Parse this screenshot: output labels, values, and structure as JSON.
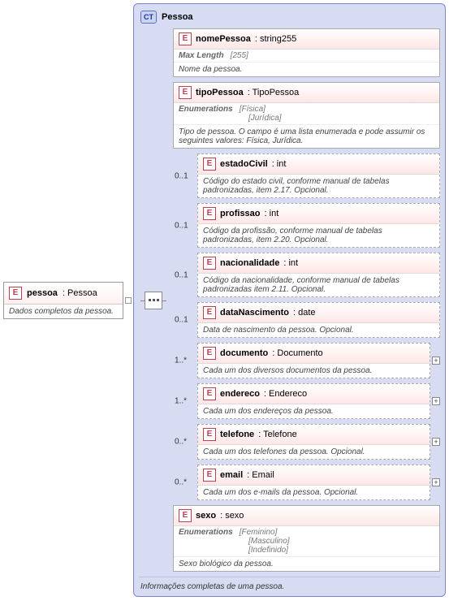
{
  "root": {
    "icon": "E",
    "name": "pessoa",
    "type": ": Pessoa",
    "desc": "Dados completos da pessoa."
  },
  "ct": {
    "icon": "CT",
    "title": "Pessoa",
    "footer": "Informações completas de uma pessoa."
  },
  "children": [
    {
      "icon": "E",
      "name": "nomePessoa",
      "type": ": string255",
      "cardinality": "",
      "style": "required",
      "metaKey": "Max Length",
      "metaVal": "[255]",
      "desc": "Nome da pessoa.",
      "expand": false
    },
    {
      "icon": "E",
      "name": "tipoPessoa",
      "type": ": TipoPessoa",
      "cardinality": "",
      "style": "required",
      "metaKey": "Enumerations",
      "metaVal": "[Física]\n[Jurídica]",
      "desc": "Tipo de pessoa. O campo é uma lista enumerada e pode assumir os seguintes valores: Física, Jurídica.",
      "expand": false
    },
    {
      "icon": "E",
      "name": "estadoCivil",
      "type": ": int",
      "cardinality": "0..1",
      "style": "optional",
      "desc": "Código do estado civil, conforme manual de tabelas padronizadas, item 2.17. Opcional.",
      "expand": false
    },
    {
      "icon": "E",
      "name": "profissao",
      "type": ": int",
      "cardinality": "0..1",
      "style": "optional",
      "desc": "Código da profissão, conforme manual de tabelas padronizadas, item 2.20. Opcional.",
      "expand": false
    },
    {
      "icon": "E",
      "name": "nacionalidade",
      "type": ": int",
      "cardinality": "0..1",
      "style": "optional",
      "desc": "Código da nacionalidade, conforme manual de tabelas padronizadas item 2.11. Opcional.",
      "expand": false
    },
    {
      "icon": "E",
      "name": "dataNascimento",
      "type": ": date",
      "cardinality": "0..1",
      "style": "optional",
      "desc": "Data de nascimento da pessoa. Opcional.",
      "expand": false
    },
    {
      "icon": "E",
      "name": "documento",
      "type": ": Documento",
      "cardinality": "1..*",
      "style": "multi",
      "desc": "Cada um dos diversos documentos da pessoa.",
      "expand": true
    },
    {
      "icon": "E",
      "name": "endereco",
      "type": ": Endereco",
      "cardinality": "1..*",
      "style": "multi",
      "desc": "Cada um dos endereços da pessoa.",
      "expand": true
    },
    {
      "icon": "E",
      "name": "telefone",
      "type": ": Telefone",
      "cardinality": "0..*",
      "style": "multi",
      "desc": "Cada um dos telefones da pessoa. Opcional.",
      "expand": true
    },
    {
      "icon": "E",
      "name": "email",
      "type": ": Email",
      "cardinality": "0..*",
      "style": "multi",
      "desc": "Cada um dos e-mails da pessoa. Opcional.",
      "expand": true
    },
    {
      "icon": "E",
      "name": "sexo",
      "type": ": sexo",
      "cardinality": "",
      "style": "required",
      "metaKey": "Enumerations",
      "metaVal": "[Feminino]\n[Masculino]\n[Indefinido]",
      "desc": "Sexo biológico da pessoa.",
      "expand": false
    }
  ],
  "style": {
    "background": "#ffffff",
    "ct_background": "#d7dcf2",
    "ct_border": "#7a86c9",
    "element_gradient_to": "#ffe6e6",
    "eicon_border": "#c04050",
    "cticon_bg": "#c9d5f0",
    "font_family": "Tahoma, Arial, sans-serif",
    "font_size_pt": 8
  }
}
